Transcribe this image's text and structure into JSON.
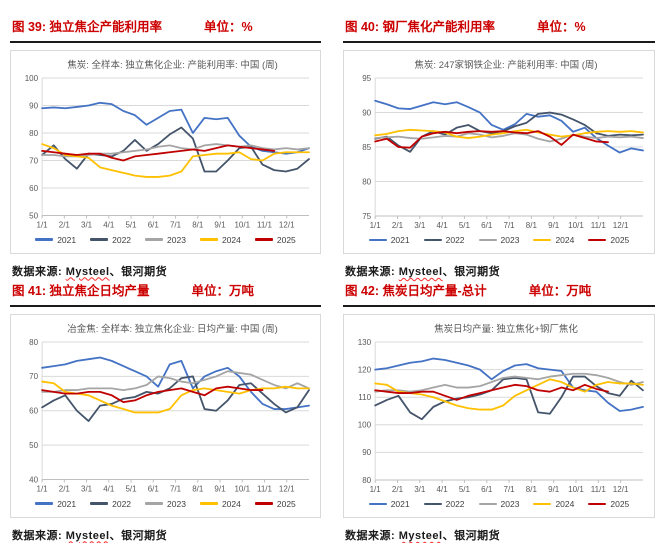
{
  "source": {
    "prefix": "数据来源: ",
    "mysteel": "Mysteel",
    "suffix": "、银河期货"
  },
  "series_colors": {
    "2021": "#4472C4",
    "2022": "#44546A",
    "2023": "#A5A5A5",
    "2024": "#FFC000",
    "2025": "#C00000"
  },
  "accent": {
    "title_red": "#cc0000",
    "grid": "#D9D9D9",
    "axis": "#BFBFBF",
    "tick_text": "#595959"
  },
  "chart_data": [
    {
      "type": "line",
      "figure_title": "图 39: 独立焦企产能利用率",
      "unit": "单位：%",
      "subtitle": "焦炭: 全样本: 独立焦化企业: 产能利用率: 中国 (周)",
      "ylim": [
        50,
        100
      ],
      "yticks": [
        50,
        60,
        70,
        80,
        90,
        100
      ],
      "x_ticks": [
        "1/1",
        "2/1",
        "3/1",
        "4/1",
        "5/1",
        "6/1",
        "7/1",
        "8/1",
        "9/1",
        "10/1",
        "11/1",
        "12/1"
      ],
      "legend_position": "bottom",
      "grid": "horizontal",
      "series": [
        {
          "name": "2021",
          "values": [
            89,
            89.3,
            89,
            89.5,
            90,
            91,
            90.5,
            88,
            86.5,
            83,
            85.5,
            88,
            88.5,
            80,
            85.5,
            85,
            85.5,
            79,
            75,
            73.5,
            73,
            72.5,
            73,
            74.5
          ]
        },
        {
          "name": "2022",
          "values": [
            72,
            75.5,
            70.5,
            67,
            72.5,
            72,
            71.5,
            73.5,
            77.5,
            73.5,
            76,
            79.5,
            82,
            78,
            66,
            66,
            70,
            74.5,
            75,
            68.5,
            66.5,
            66,
            67,
            70.5
          ]
        },
        {
          "name": "2023",
          "values": [
            72,
            72,
            71.5,
            71.5,
            72,
            72.5,
            72.5,
            73,
            73.5,
            74,
            75,
            75.5,
            74.5,
            74,
            75.5,
            76,
            75.5,
            75,
            75.5,
            74.5,
            74,
            74.5,
            74,
            74.5
          ]
        },
        {
          "name": "2024",
          "values": [
            76,
            74.5,
            72,
            71.5,
            71,
            67.5,
            66.5,
            65.5,
            64.5,
            64,
            64,
            64.5,
            66,
            71.5,
            72,
            72.5,
            72.5,
            73,
            70.5,
            70,
            72.5,
            73,
            73,
            73
          ]
        },
        {
          "name": "2025",
          "values": [
            73.5,
            73,
            72.5,
            72,
            72.5,
            72.5,
            71,
            70,
            71.5,
            72,
            72.5,
            73,
            73.5,
            74,
            73.5,
            74.5,
            75.5,
            75,
            74.5,
            74,
            73.5,
            null,
            null,
            null
          ]
        }
      ]
    },
    {
      "type": "line",
      "figure_title": "图 40: 钢厂焦化产能利用率",
      "unit": "单位：%",
      "subtitle": "焦炭: 247家钢铁企业: 产能利用率: 中国 (周)",
      "ylim": [
        75,
        95
      ],
      "yticks": [
        75,
        80,
        85,
        90,
        95
      ],
      "x_ticks": [
        "1/1",
        "2/1",
        "3/1",
        "4/1",
        "5/1",
        "6/1",
        "7/1",
        "8/1",
        "9/1",
        "10/1",
        "11/1",
        "12/1"
      ],
      "legend_position": "bottom",
      "grid": "horizontal",
      "series": [
        {
          "name": "2021",
          "values": [
            91.7,
            91.2,
            90.6,
            90.5,
            91,
            91.5,
            91.2,
            91.5,
            90.8,
            90,
            88.2,
            87.5,
            88.3,
            89.8,
            89.4,
            89.6,
            88.8,
            87.2,
            87.8,
            86.3,
            85.2,
            84.2,
            84.8,
            84.5
          ]
        },
        {
          "name": "2022",
          "values": [
            86.2,
            86.5,
            85.2,
            84.3,
            86.5,
            87.3,
            86.8,
            87.8,
            88.2,
            87.3,
            87,
            87.3,
            88,
            88.5,
            89.8,
            90,
            89.7,
            89,
            88.2,
            87,
            86.6,
            86.8,
            86.7,
            86.8
          ]
        },
        {
          "name": "2023",
          "values": [
            86.3,
            86.4,
            86.5,
            86.3,
            86.2,
            86.4,
            86.6,
            86.5,
            87,
            86.8,
            86.4,
            86.6,
            87,
            86.8,
            86.2,
            85.8,
            86.2,
            86.8,
            86.5,
            86.3,
            86.5,
            86.4,
            86.5,
            86.3
          ]
        },
        {
          "name": "2024",
          "values": [
            86.7,
            86.9,
            87.3,
            87.5,
            87.4,
            87.3,
            87.1,
            86.5,
            86.3,
            86.5,
            86.8,
            87,
            87.3,
            87.5,
            87.1,
            86.8,
            86.5,
            86.7,
            87,
            87.2,
            87.3,
            87.2,
            87.3,
            87.1
          ]
        },
        {
          "name": "2025",
          "values": [
            85.8,
            86.2,
            85,
            84.9,
            86.5,
            87,
            87.2,
            87,
            87.2,
            87.3,
            87.2,
            87.3,
            87.1,
            87,
            87.3,
            86.5,
            85.3,
            86.8,
            86.3,
            85.8,
            85.7,
            null,
            null,
            null
          ]
        }
      ]
    },
    {
      "type": "line",
      "figure_title": "图 41: 独立焦企日均产量",
      "unit": "单位：万吨",
      "subtitle": "冶金焦: 全样本: 独立焦化企业: 日均产量: 中国 (周)",
      "ylim": [
        40,
        80
      ],
      "yticks": [
        40,
        50,
        60,
        70,
        80
      ],
      "x_ticks": [
        "1/1",
        "2/1",
        "3/1",
        "4/1",
        "5/1",
        "6/1",
        "7/1",
        "8/1",
        "9/1",
        "10/1",
        "11/1",
        "12/1"
      ],
      "legend_position": "bottom",
      "grid": "horizontal",
      "series": [
        {
          "name": "2021",
          "values": [
            72.5,
            73,
            73.5,
            74.5,
            75,
            75.5,
            74.5,
            73,
            71.5,
            70,
            67,
            73.5,
            74.5,
            66.5,
            70,
            71.5,
            72.5,
            70,
            65.5,
            62,
            60.5,
            60.5,
            61,
            61.5
          ]
        },
        {
          "name": "2022",
          "values": [
            61,
            63,
            64.5,
            60,
            57,
            61.5,
            62,
            63.5,
            64,
            65.5,
            65,
            66.5,
            69.5,
            70,
            60.5,
            60,
            63,
            67.5,
            68,
            65,
            62,
            59.5,
            61,
            66
          ]
        },
        {
          "name": "2023",
          "values": [
            65.5,
            65.5,
            66,
            66,
            66.5,
            66.5,
            66.5,
            66,
            66.5,
            67.5,
            70,
            69.5,
            68.5,
            68,
            69,
            70,
            71.5,
            71,
            70.5,
            69,
            67.5,
            66.5,
            68,
            66.5
          ]
        },
        {
          "name": "2024",
          "values": [
            68.5,
            68,
            65.5,
            65,
            64.5,
            63,
            61.5,
            60.5,
            59.5,
            59.5,
            59.5,
            60.5,
            64.5,
            66,
            66.5,
            66,
            65.5,
            65,
            66,
            66.5,
            66.5,
            67,
            66.5,
            66.5
          ]
        },
        {
          "name": "2025",
          "values": [
            66,
            65.5,
            65,
            65,
            65.5,
            65.5,
            64.5,
            62.5,
            63,
            64.5,
            65.5,
            66,
            66.5,
            65.5,
            64.5,
            66.5,
            67,
            66.5,
            66,
            66,
            null,
            null,
            null,
            null
          ]
        }
      ]
    },
    {
      "type": "line",
      "figure_title": "图 42: 焦炭日均产量-总计",
      "unit": "单位：万吨",
      "subtitle": "焦炭日均产量: 独立焦化+钢厂焦化",
      "ylim": [
        80,
        130
      ],
      "yticks": [
        80,
        90,
        100,
        110,
        120,
        130
      ],
      "x_ticks": [
        "1/1",
        "2/1",
        "3/1",
        "4/1",
        "5/1",
        "6/1",
        "7/1",
        "8/1",
        "9/1",
        "10/1",
        "11/1",
        "12/1"
      ],
      "legend_position": "bottom",
      "grid": "horizontal",
      "series": [
        {
          "name": "2021",
          "values": [
            120,
            120.5,
            121.5,
            122.5,
            123,
            124,
            123.5,
            122.5,
            121.5,
            120,
            116.5,
            119.5,
            121.5,
            122,
            120.5,
            120,
            119.5,
            113.5,
            112.5,
            112,
            108,
            105,
            105.5,
            106.5
          ]
        },
        {
          "name": "2022",
          "values": [
            107,
            109,
            110.5,
            104.5,
            102,
            106.5,
            108.5,
            109.5,
            110,
            111,
            112.5,
            116.5,
            117,
            116.5,
            104.5,
            104,
            110,
            117.5,
            117.5,
            114,
            111.5,
            110.5,
            116,
            112.5
          ]
        },
        {
          "name": "2023",
          "values": [
            112,
            112.5,
            112.5,
            112,
            112.5,
            113.5,
            114.5,
            113.5,
            113.5,
            114,
            115.5,
            117,
            117.5,
            117,
            116.5,
            117.5,
            118,
            118.5,
            118.5,
            118,
            117,
            115.5,
            114.5,
            115.5
          ]
        },
        {
          "name": "2024",
          "values": [
            115,
            114.5,
            112,
            111.5,
            111,
            110,
            108.5,
            107,
            106,
            105.5,
            105.5,
            107,
            110.5,
            112.5,
            114.5,
            116.5,
            115.5,
            113.5,
            112,
            114.5,
            115.5,
            115,
            115,
            114.5
          ]
        },
        {
          "name": "2025",
          "values": [
            112.5,
            112,
            111.5,
            111.5,
            112,
            112,
            110.5,
            109,
            110.5,
            111.5,
            112.5,
            113.5,
            114.5,
            114,
            112.5,
            112,
            113.5,
            112.5,
            114.5,
            113,
            112,
            null,
            null,
            null
          ]
        }
      ]
    }
  ]
}
